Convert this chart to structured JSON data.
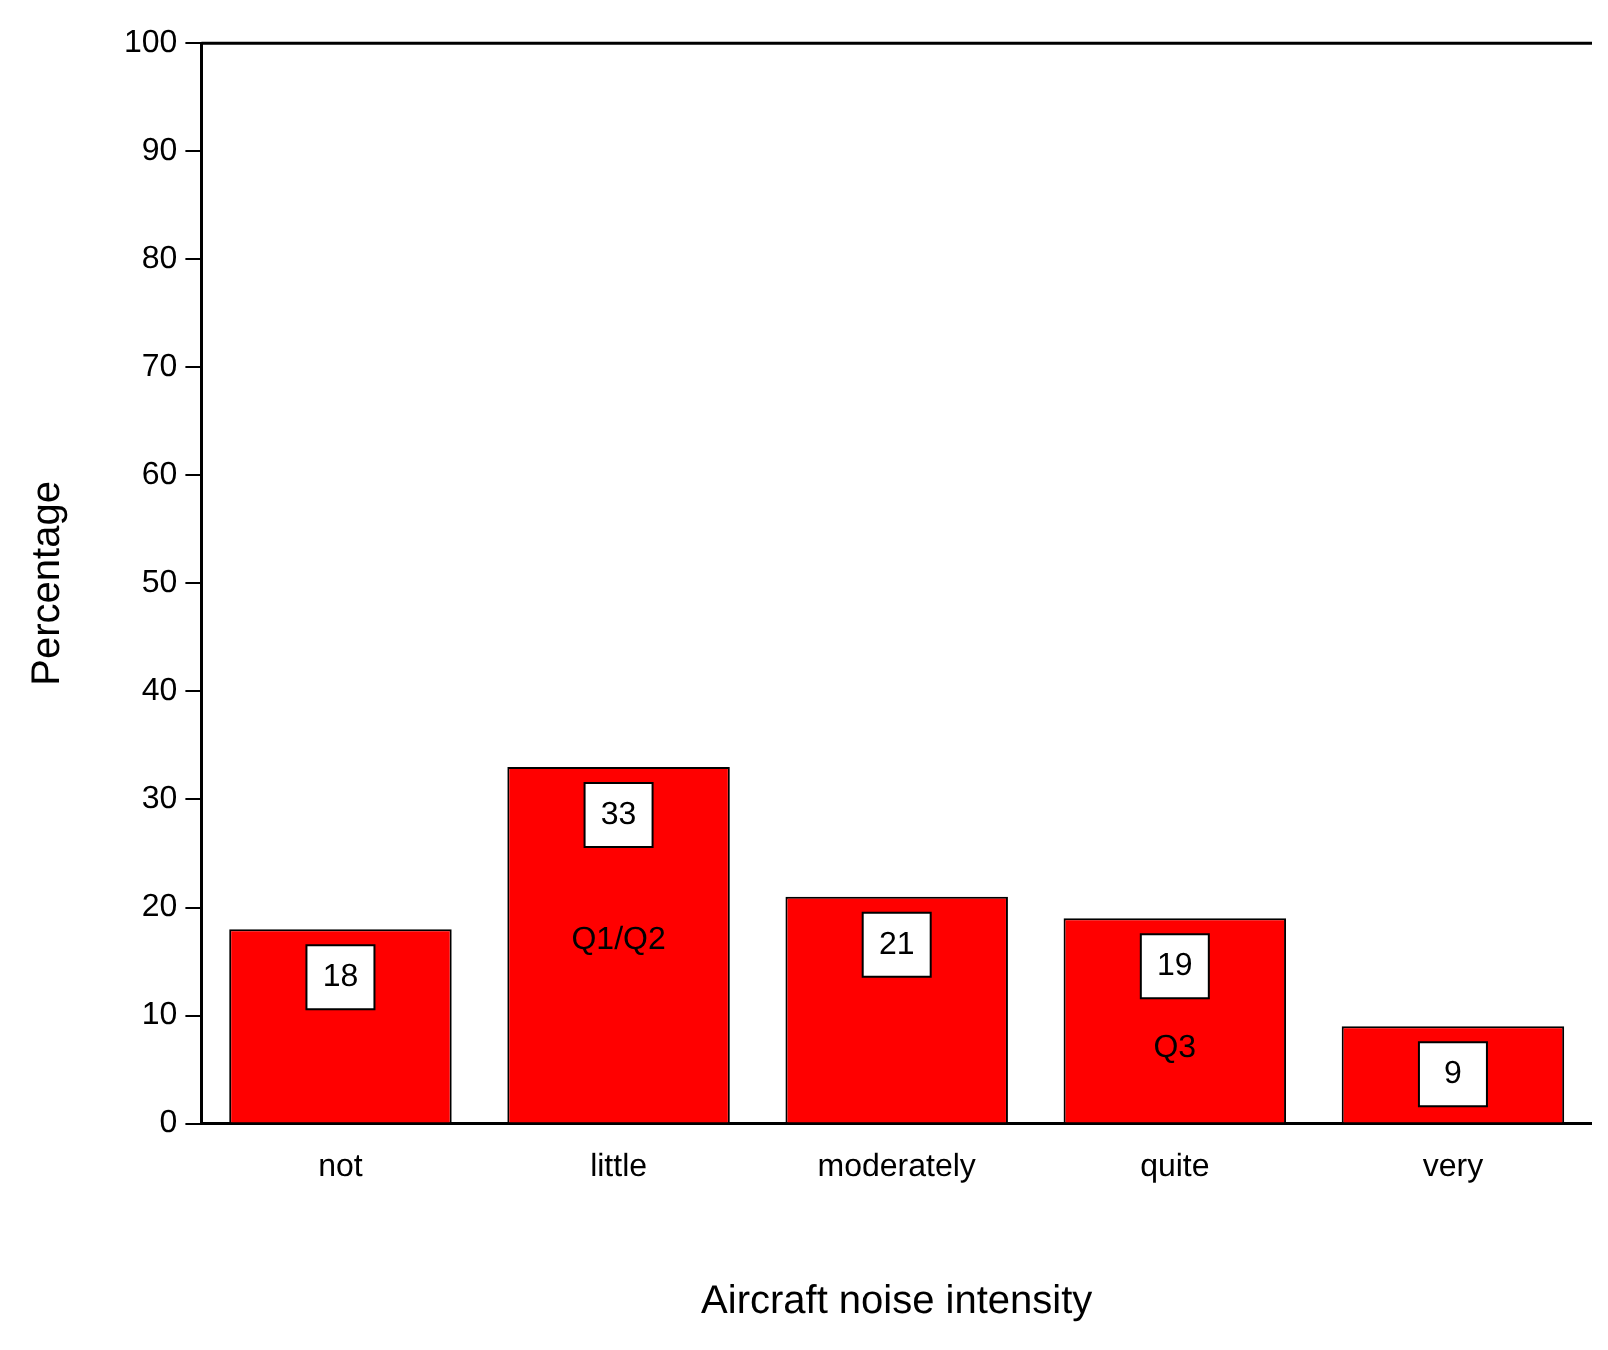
{
  "chart_data": {
    "type": "bar",
    "xlabel": "Aircraft noise intensity",
    "ylabel": "Percentage",
    "categories": [
      "not",
      "little",
      "moderately",
      "quite",
      "very"
    ],
    "values": [
      18,
      33,
      21,
      19,
      9
    ],
    "color": "#ff0000",
    "ylim": [
      0,
      100
    ],
    "yticks": [
      0,
      10,
      20,
      30,
      40,
      50,
      60,
      70,
      80,
      90,
      100
    ],
    "data_labels": true,
    "grid": false,
    "legend": false,
    "annotations": [
      "Q1/Q2",
      "Q3"
    ]
  }
}
